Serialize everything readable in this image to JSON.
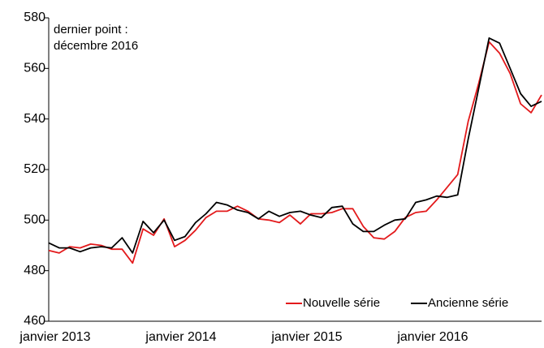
{
  "chart_data": {
    "type": "line",
    "annotations": [
      "dernier point :",
      "décembre 2016"
    ],
    "categories": [
      "janvier 2013",
      null,
      null,
      null,
      null,
      null,
      null,
      null,
      null,
      null,
      null,
      null,
      "janvier 2014",
      null,
      null,
      null,
      null,
      null,
      null,
      null,
      null,
      null,
      null,
      null,
      "janvier 2015",
      null,
      null,
      null,
      null,
      null,
      null,
      null,
      null,
      null,
      null,
      null,
      "janvier 2016",
      null,
      null,
      null,
      null,
      null,
      null,
      null,
      null,
      null,
      null,
      null
    ],
    "series": [
      {
        "name": "Nouvelle série",
        "color": "#e31a1c",
        "values": [
          488,
          487,
          489.5,
          489,
          490.5,
          490,
          488.5,
          488.5,
          483,
          496.5,
          494,
          500.5,
          489.5,
          492,
          496,
          501,
          503.5,
          503.5,
          505.5,
          503.5,
          500.5,
          500,
          499,
          502,
          498.5,
          502.5,
          502.5,
          503,
          504.5,
          504.5,
          497.5,
          493,
          492.5,
          495.5,
          501,
          503,
          503.5,
          508,
          513,
          518,
          539,
          554,
          570.5,
          566,
          558,
          546,
          542.5,
          549.5
        ]
      },
      {
        "name": "Ancienne série",
        "color": "#000000",
        "values": [
          491,
          489,
          489,
          487.5,
          489,
          489.5,
          489,
          493,
          487,
          499.5,
          495,
          500,
          492,
          493.5,
          499,
          502.5,
          507,
          506,
          504,
          503,
          500.5,
          503.5,
          501.5,
          503,
          503.5,
          502,
          501,
          505,
          505.5,
          498.5,
          495.5,
          495.5,
          498,
          500,
          500.5,
          507,
          508,
          509.5,
          509,
          510,
          532,
          552,
          572,
          570,
          560,
          550,
          545,
          547
        ]
      }
    ],
    "ylim": [
      460,
      580
    ],
    "yticks": [
      460,
      480,
      500,
      520,
      540,
      560,
      580
    ],
    "legend": "lower right",
    "grid": false
  }
}
